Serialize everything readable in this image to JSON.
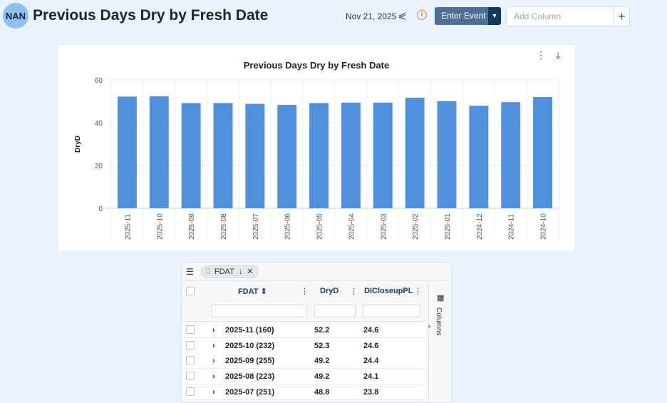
{
  "header": {
    "logo": "NAN",
    "title": "Previous Days Dry by Fresh Date",
    "date": "Nov 21, 2025",
    "enter_event": "Enter Event",
    "add_column_placeholder": "Add Column"
  },
  "chart_actions": {
    "menu": "⋮",
    "download": "⤓"
  },
  "chart_data": {
    "type": "bar",
    "title": "Previous Days Dry by Fresh Date",
    "xlabel": "",
    "ylabel": "DryD",
    "ylim": [
      0,
      60
    ],
    "yticks": [
      0,
      20,
      40,
      60
    ],
    "grid": true,
    "color": "#5090dd",
    "categories": [
      "2025-11",
      "2025-10",
      "2025-09",
      "2025-08",
      "2025-07",
      "2025-06",
      "2025-05",
      "2025-04",
      "2025-03",
      "2025-02",
      "2025-01",
      "2024-12",
      "2024-11",
      "2024-10"
    ],
    "values": [
      52.2,
      52.3,
      49.2,
      49.2,
      48.8,
      48.3,
      49.2,
      49.4,
      49.4,
      51.7,
      50.0,
      47.9,
      49.6,
      52.0
    ]
  },
  "grid": {
    "group_chip": "FDAT",
    "columns": [
      "FDAT",
      "DryD",
      "DICloseupPL"
    ],
    "side_panel": "Columns",
    "rows": [
      {
        "fdat": "2025-11 (160)",
        "dryd": "52.2",
        "dic": "24.6"
      },
      {
        "fdat": "2025-10 (232)",
        "dryd": "52.3",
        "dic": "24.6"
      },
      {
        "fdat": "2025-09 (255)",
        "dryd": "49.2",
        "dic": "24.4"
      },
      {
        "fdat": "2025-08 (223)",
        "dryd": "49.2",
        "dic": "24.1"
      },
      {
        "fdat": "2025-07 (251)",
        "dryd": "48.8",
        "dic": "23.8"
      }
    ]
  }
}
